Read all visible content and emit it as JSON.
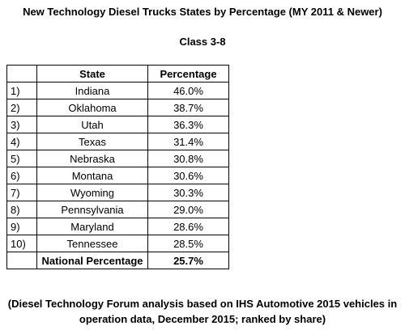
{
  "title": "New Technology Diesel Trucks States by Percentage (MY 2011 & Newer)",
  "subtitle": "Class 3-8",
  "table": {
    "headers": [
      "",
      "State",
      "Percentage"
    ],
    "rows": [
      {
        "rank": "1)",
        "state": "Indiana",
        "pct": "46.0%"
      },
      {
        "rank": "2)",
        "state": "Oklahoma",
        "pct": "38.7%"
      },
      {
        "rank": "3)",
        "state": "Utah",
        "pct": "36.3%"
      },
      {
        "rank": "4)",
        "state": "Texas",
        "pct": "31.4%"
      },
      {
        "rank": "5)",
        "state": "Nebraska",
        "pct": "30.8%"
      },
      {
        "rank": "6)",
        "state": "Montana",
        "pct": "30.6%"
      },
      {
        "rank": "7)",
        "state": "Wyoming",
        "pct": "30.3%"
      },
      {
        "rank": "8)",
        "state": "Pennsylvania",
        "pct": "29.0%"
      },
      {
        "rank": "9)",
        "state": "Maryland",
        "pct": "28.6%"
      },
      {
        "rank": "10)",
        "state": "Tennessee",
        "pct": "28.5%"
      }
    ],
    "national": {
      "rank": "",
      "label": "National Percentage",
      "pct": "25.7%"
    }
  },
  "footnote_line1": "(Diesel Technology Forum analysis based on IHS Automotive 2015 vehicles in",
  "footnote_line2": "operation data, December 2015; ranked by share)"
}
